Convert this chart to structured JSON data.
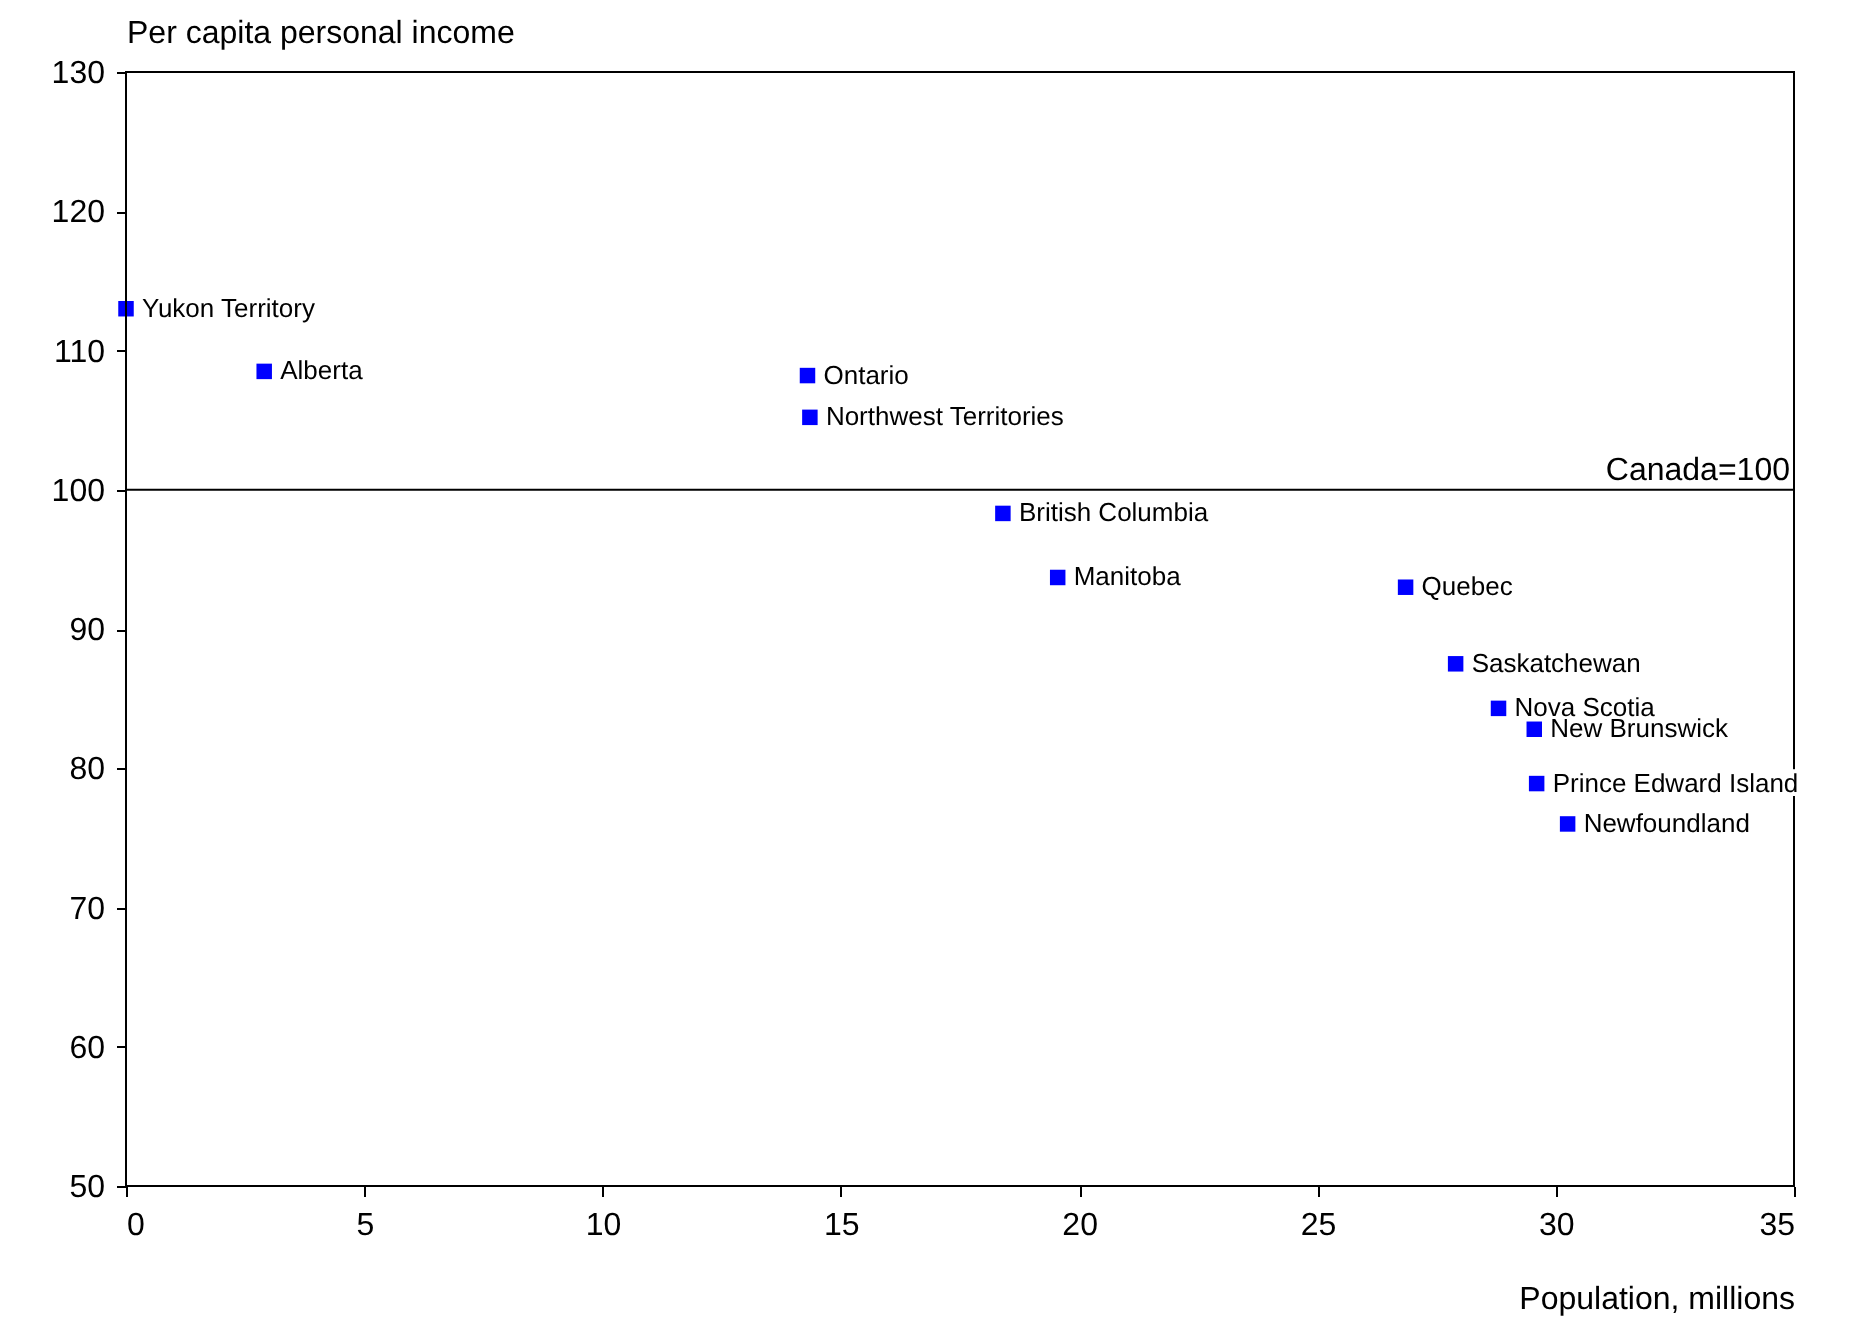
{
  "chart_data": {
    "type": "scatter",
    "xlabel": "Population, millions",
    "ylabel": "Per capita personal income",
    "x": [
      0,
      2.9,
      14.3,
      14.35,
      18.4,
      19.55,
      26.85,
      27.9,
      28.8,
      29.55,
      29.6,
      30.25
    ],
    "series": [
      {
        "color": "#0000ff",
        "values": [
          113,
          108.5,
          108.2,
          105.2,
          98.3,
          93.7,
          93,
          87.5,
          84.3,
          82.8,
          78.9,
          76
        ]
      }
    ],
    "annotations": [
      {
        "text": "Yukon Territory",
        "x": 0,
        "y": 113
      },
      {
        "text": "Alberta",
        "x": 2.9,
        "y": 108.5
      },
      {
        "text": "Ontario",
        "x": 14.3,
        "y": 108.2
      },
      {
        "text": "Northwest Territories",
        "x": 14.35,
        "y": 105.2
      },
      {
        "text": "British Columbia",
        "x": 18.4,
        "y": 98.3
      },
      {
        "text": "Manitoba",
        "x": 19.55,
        "y": 93.7
      },
      {
        "text": "Quebec",
        "x": 26.85,
        "y": 93
      },
      {
        "text": "Saskatchewan",
        "x": 27.9,
        "y": 87.5
      },
      {
        "text": "Nova Scotia",
        "x": 28.8,
        "y": 84.3
      },
      {
        "text": "New Brunswick",
        "x": 29.55,
        "y": 82.8
      },
      {
        "text": "Prince Edward Island",
        "x": 29.6,
        "y": 78.9
      },
      {
        "text": "Newfoundland",
        "x": 30.25,
        "y": 76
      }
    ],
    "ref_lines": [
      {
        "axis": "y",
        "value": 100,
        "label": "Canada=100",
        "color": "#000000"
      }
    ],
    "xlim": [
      0,
      35
    ],
    "xticks": [
      0,
      5,
      10,
      15,
      20,
      25,
      30,
      35
    ],
    "ylim": [
      50,
      130
    ],
    "yticks": [
      50,
      60,
      70,
      80,
      90,
      100,
      110,
      120,
      130
    ],
    "marker": "square",
    "grid": false
  }
}
